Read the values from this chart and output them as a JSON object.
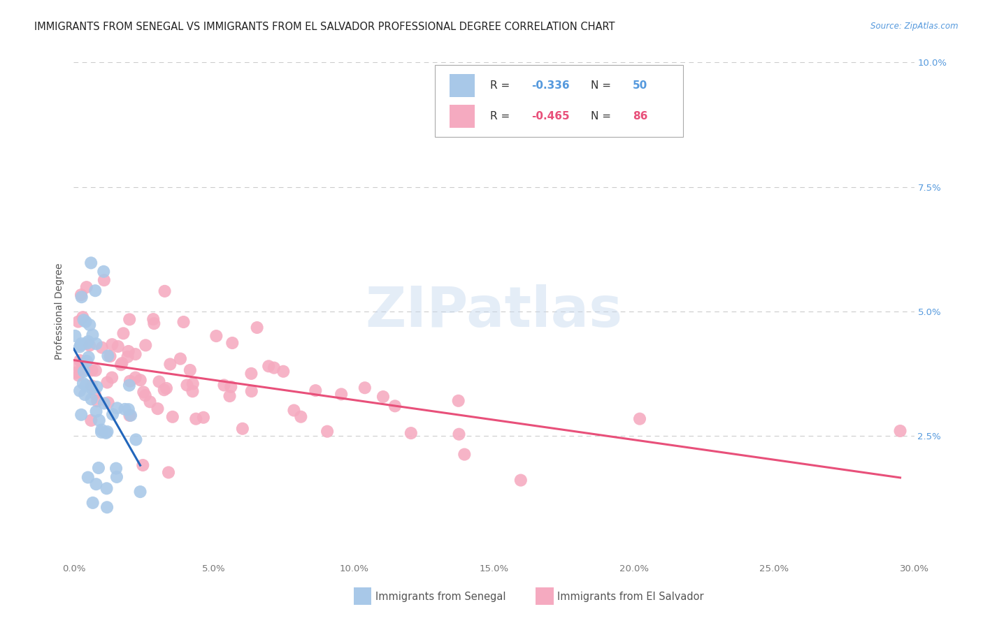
{
  "title": "IMMIGRANTS FROM SENEGAL VS IMMIGRANTS FROM EL SALVADOR PROFESSIONAL DEGREE CORRELATION CHART",
  "source": "Source: ZipAtlas.com",
  "ylabel": "Professional Degree",
  "xlim": [
    0.0,
    0.3
  ],
  "ylim": [
    0.0,
    0.1
  ],
  "senegal_color": "#a8c8e8",
  "salvador_color": "#f5aac0",
  "senegal_line_color": "#2266bb",
  "salvador_line_color": "#e8507a",
  "senegal_R": -0.336,
  "senegal_N": 50,
  "salvador_R": -0.465,
  "salvador_N": 86,
  "background_color": "#ffffff",
  "grid_color": "#cccccc",
  "title_fontsize": 10.5,
  "axis_label_fontsize": 10,
  "tick_fontsize": 9.5,
  "right_axis_color": "#5599dd",
  "watermark": "ZIPatlas"
}
